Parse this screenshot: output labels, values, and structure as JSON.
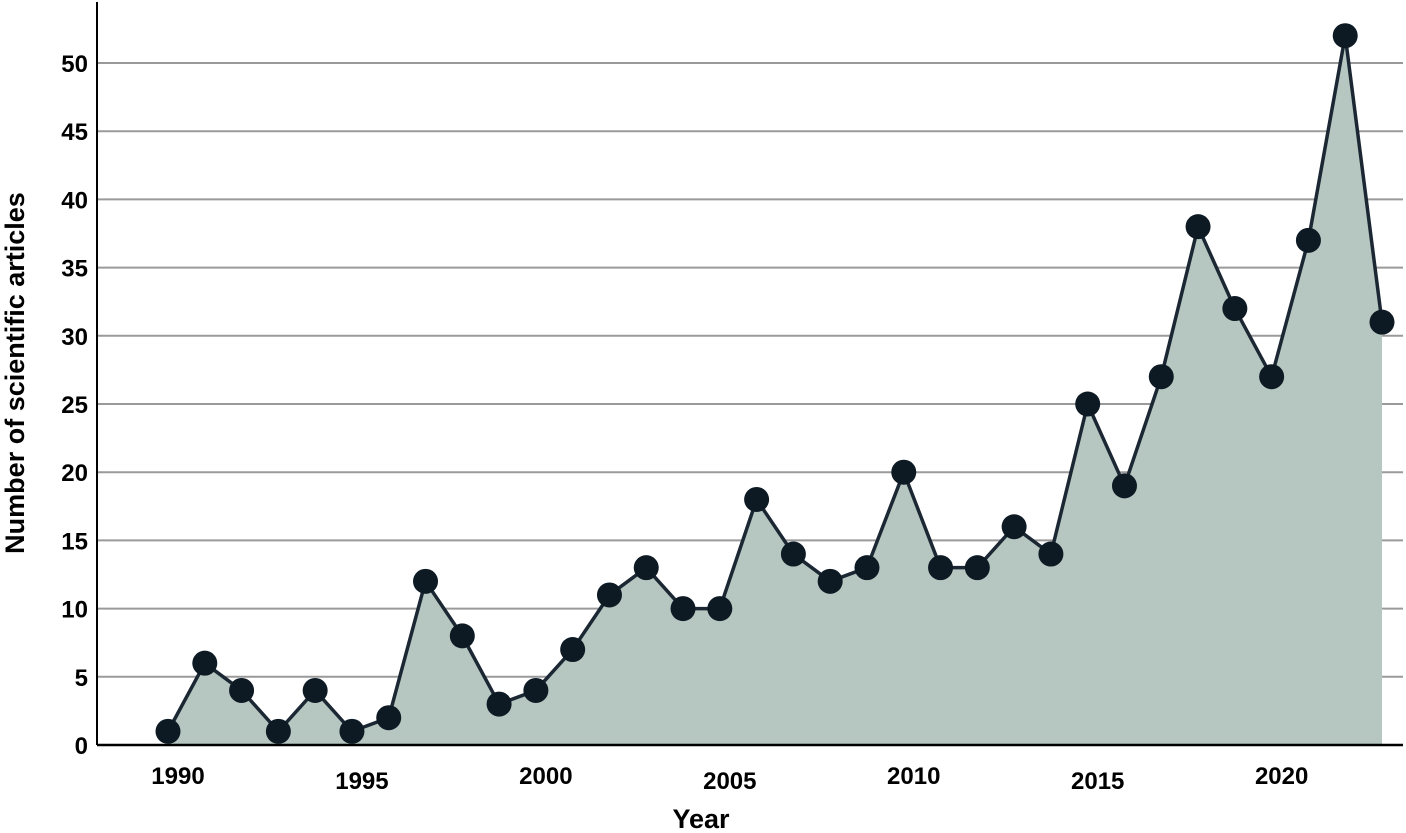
{
  "chart_data": {
    "type": "area",
    "title": "",
    "xlabel": "Year",
    "ylabel": "Number of scientific articles",
    "xlim": [
      1988,
      2023.5
    ],
    "ylim": [
      0,
      54
    ],
    "yticks": [
      0,
      5,
      10,
      15,
      20,
      25,
      30,
      35,
      40,
      45,
      50
    ],
    "xticks": [
      1990,
      1995,
      2000,
      2005,
      2010,
      2015,
      2020
    ],
    "grid": true,
    "legend": "none",
    "colors": {
      "fill": "#b6c6c0",
      "line": "#1b2733",
      "marker": "#0d1a24",
      "grid": "#9a9a9a",
      "axis": "#000000"
    },
    "series": [
      {
        "x": [
          1990,
          1991,
          1992,
          1993,
          1994,
          1995,
          1996,
          1997,
          1998,
          1999,
          2000,
          2001,
          2002,
          2003,
          2004,
          2005,
          2006,
          2007,
          2008,
          2009,
          2010,
          2011,
          2012,
          2013,
          2014,
          2015,
          2016,
          2017,
          2018,
          2019,
          2020,
          2021,
          2022,
          2023
        ],
        "values": [
          1,
          6,
          4,
          1,
          4,
          1,
          2,
          12,
          8,
          3,
          4,
          7,
          11,
          13,
          10,
          10,
          18,
          14,
          12,
          13,
          20,
          13,
          13,
          16,
          14,
          25,
          19,
          27,
          38,
          32,
          27,
          37,
          52,
          31
        ]
      }
    ]
  }
}
